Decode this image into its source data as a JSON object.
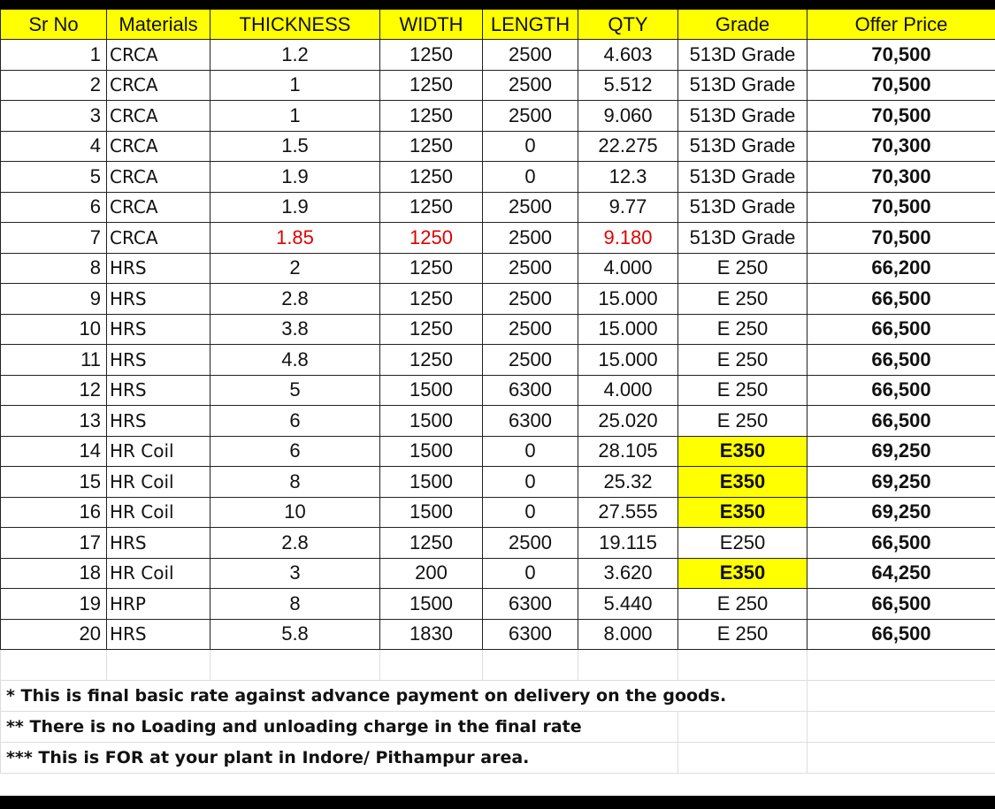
{
  "table": {
    "headers": [
      "Sr No",
      "Materials",
      "THICKNESS",
      "WIDTH",
      "LENGTH",
      "QTY",
      "Grade",
      "Offer Price"
    ],
    "rows": [
      {
        "sr": "1",
        "material": "CRCA",
        "thickness": "1.2",
        "width": "1250",
        "length": "2500",
        "qty": "4.603",
        "grade": "513D Grade",
        "price": "70,500"
      },
      {
        "sr": "2",
        "material": "CRCA",
        "thickness": "1",
        "width": "1250",
        "length": "2500",
        "qty": "5.512",
        "grade": "513D Grade",
        "price": "70,500"
      },
      {
        "sr": "3",
        "material": "CRCA",
        "thickness": "1",
        "width": "1250",
        "length": "2500",
        "qty": "9.060",
        "grade": "513D Grade",
        "price": "70,500"
      },
      {
        "sr": "4",
        "material": "CRCA",
        "thickness": "1.5",
        "width": "1250",
        "length": "0",
        "qty": "22.275",
        "grade": "513D Grade",
        "price": "70,300"
      },
      {
        "sr": "5",
        "material": "CRCA",
        "thickness": "1.9",
        "width": "1250",
        "length": "0",
        "qty": "12.3",
        "grade": "513D Grade",
        "price": "70,300"
      },
      {
        "sr": "6",
        "material": "CRCA",
        "thickness": "1.9",
        "width": "1250",
        "length": "2500",
        "qty": "9.77",
        "grade": "513D Grade",
        "price": "70,500"
      },
      {
        "sr": "7",
        "material": "CRCA",
        "thickness": "1.85",
        "width": "1250",
        "length": "2500",
        "qty": "9.180",
        "grade": "513D Grade",
        "price": "70,500"
      },
      {
        "sr": "8",
        "material": "HRS",
        "thickness": "2",
        "width": "1250",
        "length": "2500",
        "qty": "4.000",
        "grade": "E 250",
        "price": "66,200"
      },
      {
        "sr": "9",
        "material": "HRS",
        "thickness": "2.8",
        "width": "1250",
        "length": "2500",
        "qty": "15.000",
        "grade": "E 250",
        "price": "66,500"
      },
      {
        "sr": "10",
        "material": "HRS",
        "thickness": "3.8",
        "width": "1250",
        "length": "2500",
        "qty": "15.000",
        "grade": "E 250",
        "price": "66,500"
      },
      {
        "sr": "11",
        "material": "HRS",
        "thickness": "4.8",
        "width": "1250",
        "length": "2500",
        "qty": "15.000",
        "grade": "E 250",
        "price": "66,500"
      },
      {
        "sr": "12",
        "material": "HRS",
        "thickness": "5",
        "width": "1500",
        "length": "6300",
        "qty": "4.000",
        "grade": "E 250",
        "price": "66,500"
      },
      {
        "sr": "13",
        "material": "HRS",
        "thickness": "6",
        "width": "1500",
        "length": "6300",
        "qty": "25.020",
        "grade": "E 250",
        "price": "66,500"
      },
      {
        "sr": "14",
        "material": "HR Coil",
        "thickness": "6",
        "width": "1500",
        "length": "0",
        "qty": "28.105",
        "grade": "E350",
        "price": "69,250"
      },
      {
        "sr": "15",
        "material": "HR Coil",
        "thickness": "8",
        "width": "1500",
        "length": "0",
        "qty": "25.32",
        "grade": "E350",
        "price": "69,250"
      },
      {
        "sr": "16",
        "material": "HR Coil",
        "thickness": "10",
        "width": "1500",
        "length": "0",
        "qty": "27.555",
        "grade": "E350",
        "price": "69,250"
      },
      {
        "sr": "17",
        "material": "HRS",
        "thickness": "2.8",
        "width": "1250",
        "length": "2500",
        "qty": "19.115",
        "grade": "E250",
        "price": "66,500"
      },
      {
        "sr": "18",
        "material": "HR Coil",
        "thickness": "3",
        "width": "200",
        "length": "0",
        "qty": "3.620",
        "grade": "E350",
        "price": "64,250"
      },
      {
        "sr": "19",
        "material": "HRP",
        "thickness": "8",
        "width": "1500",
        "length": "6300",
        "qty": "5.440",
        "grade": "E 250",
        "price": "66,500"
      },
      {
        "sr": "20",
        "material": "HRS",
        "thickness": "5.8",
        "width": "1830",
        "length": "6300",
        "qty": "8.000",
        "grade": "E 250",
        "price": "66,500"
      }
    ]
  },
  "notes": [
    "* This is final basic rate against advance payment on delivery on the goods.",
    "** There is no Loading and unloading charge in the final rate",
    "*** This is FOR at your plant in Indore/ Pithampur area."
  ],
  "colors": {
    "header_fill": "#ffff00",
    "grade_highlight": "#ffff00",
    "red_text": "#e00000"
  }
}
